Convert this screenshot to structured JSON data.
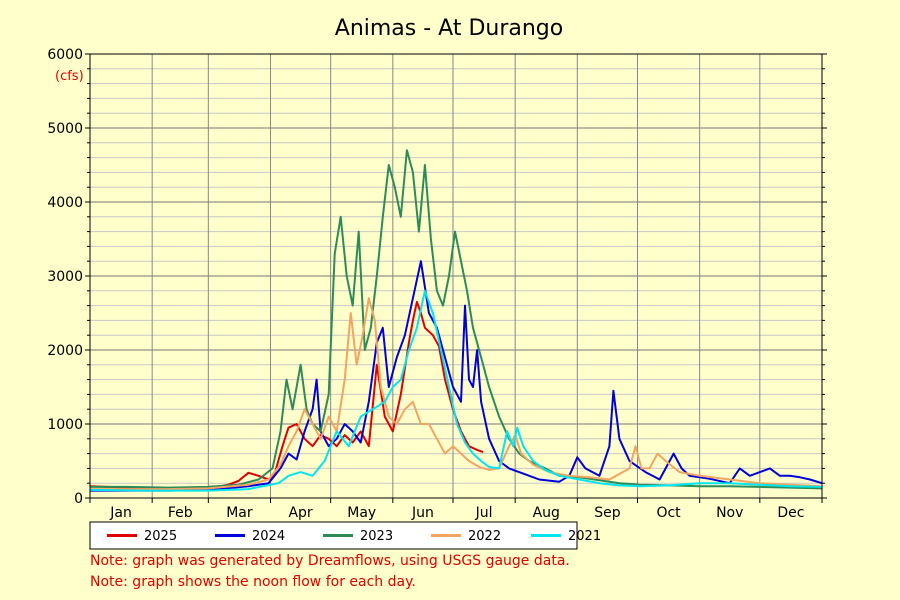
{
  "chart_data": {
    "type": "line",
    "title": "Animas - At Durango",
    "ylabel": "(cfs)",
    "xlabel": "",
    "ylim": [
      0,
      6000
    ],
    "y_ticks": [
      0,
      1000,
      2000,
      3000,
      4000,
      5000,
      6000
    ],
    "x_range_days": [
      1,
      366
    ],
    "x_labels": [
      "Jan",
      "Feb",
      "Mar",
      "Apr",
      "May",
      "Jun",
      "Jul",
      "Aug",
      "Sep",
      "Oct",
      "Nov",
      "Dec"
    ],
    "grid": true,
    "legend_placement": "bottom-left",
    "series": [
      {
        "name": "2025",
        "color": "#e00000",
        "points": [
          [
            1,
            160
          ],
          [
            10,
            150
          ],
          [
            20,
            140
          ],
          [
            31,
            140
          ],
          [
            45,
            130
          ],
          [
            55,
            130
          ],
          [
            60,
            150
          ],
          [
            66,
            160
          ],
          [
            70,
            180
          ],
          [
            75,
            230
          ],
          [
            80,
            340
          ],
          [
            85,
            300
          ],
          [
            90,
            250
          ],
          [
            93,
            320
          ],
          [
            97,
            700
          ],
          [
            100,
            950
          ],
          [
            104,
            1000
          ],
          [
            108,
            800
          ],
          [
            112,
            700
          ],
          [
            116,
            850
          ],
          [
            120,
            800
          ],
          [
            124,
            700
          ],
          [
            128,
            850
          ],
          [
            132,
            750
          ],
          [
            136,
            900
          ],
          [
            140,
            700
          ],
          [
            144,
            1800
          ],
          [
            148,
            1100
          ],
          [
            152,
            900
          ],
          [
            156,
            1400
          ],
          [
            160,
            2100
          ],
          [
            162,
            2400
          ],
          [
            164,
            2650
          ],
          [
            166,
            2500
          ],
          [
            168,
            2300
          ],
          [
            172,
            2200
          ],
          [
            175,
            2050
          ],
          [
            178,
            1600
          ],
          [
            182,
            1200
          ],
          [
            186,
            900
          ],
          [
            190,
            700
          ],
          [
            194,
            650
          ],
          [
            197,
            620
          ]
        ]
      },
      {
        "name": "2024",
        "color": "#0000dd",
        "points": [
          [
            1,
            100
          ],
          [
            20,
            100
          ],
          [
            40,
            100
          ],
          [
            60,
            110
          ],
          [
            80,
            160
          ],
          [
            90,
            200
          ],
          [
            96,
            400
          ],
          [
            100,
            600
          ],
          [
            104,
            520
          ],
          [
            108,
            900
          ],
          [
            112,
            1200
          ],
          [
            114,
            1600
          ],
          [
            116,
            900
          ],
          [
            120,
            700
          ],
          [
            124,
            800
          ],
          [
            128,
            1000
          ],
          [
            132,
            900
          ],
          [
            136,
            750
          ],
          [
            140,
            1300
          ],
          [
            144,
            2100
          ],
          [
            147,
            2300
          ],
          [
            150,
            1500
          ],
          [
            154,
            1900
          ],
          [
            158,
            2200
          ],
          [
            162,
            2700
          ],
          [
            166,
            3200
          ],
          [
            170,
            2500
          ],
          [
            174,
            2300
          ],
          [
            178,
            1900
          ],
          [
            182,
            1500
          ],
          [
            186,
            1300
          ],
          [
            188,
            2600
          ],
          [
            190,
            1600
          ],
          [
            192,
            1500
          ],
          [
            194,
            2000
          ],
          [
            196,
            1300
          ],
          [
            200,
            800
          ],
          [
            205,
            500
          ],
          [
            210,
            400
          ],
          [
            218,
            320
          ],
          [
            225,
            250
          ],
          [
            235,
            220
          ],
          [
            240,
            300
          ],
          [
            244,
            550
          ],
          [
            248,
            400
          ],
          [
            255,
            300
          ],
          [
            260,
            700
          ],
          [
            262,
            1450
          ],
          [
            265,
            800
          ],
          [
            270,
            500
          ],
          [
            278,
            350
          ],
          [
            285,
            250
          ],
          [
            292,
            600
          ],
          [
            296,
            400
          ],
          [
            300,
            300
          ],
          [
            310,
            260
          ],
          [
            320,
            200
          ],
          [
            325,
            400
          ],
          [
            330,
            300
          ],
          [
            340,
            400
          ],
          [
            345,
            300
          ],
          [
            350,
            300
          ],
          [
            355,
            280
          ],
          [
            360,
            250
          ],
          [
            366,
            200
          ]
        ]
      },
      {
        "name": "2023",
        "color": "#2e8b57",
        "points": [
          [
            1,
            150
          ],
          [
            20,
            150
          ],
          [
            40,
            140
          ],
          [
            60,
            150
          ],
          [
            75,
            180
          ],
          [
            85,
            250
          ],
          [
            92,
            400
          ],
          [
            96,
            900
          ],
          [
            99,
            1600
          ],
          [
            102,
            1200
          ],
          [
            106,
            1800
          ],
          [
            109,
            1200
          ],
          [
            112,
            1000
          ],
          [
            116,
            900
          ],
          [
            120,
            1400
          ],
          [
            123,
            3300
          ],
          [
            126,
            3800
          ],
          [
            129,
            3000
          ],
          [
            132,
            2600
          ],
          [
            135,
            3600
          ],
          [
            138,
            2000
          ],
          [
            141,
            2300
          ],
          [
            144,
            3000
          ],
          [
            147,
            3800
          ],
          [
            150,
            4500
          ],
          [
            153,
            4200
          ],
          [
            156,
            3800
          ],
          [
            159,
            4700
          ],
          [
            162,
            4400
          ],
          [
            165,
            3600
          ],
          [
            168,
            4500
          ],
          [
            171,
            3500
          ],
          [
            174,
            2800
          ],
          [
            177,
            2600
          ],
          [
            180,
            3000
          ],
          [
            183,
            3600
          ],
          [
            186,
            3200
          ],
          [
            189,
            2800
          ],
          [
            192,
            2300
          ],
          [
            196,
            1900
          ],
          [
            200,
            1500
          ],
          [
            205,
            1100
          ],
          [
            210,
            800
          ],
          [
            215,
            600
          ],
          [
            220,
            500
          ],
          [
            228,
            400
          ],
          [
            235,
            300
          ],
          [
            245,
            280
          ],
          [
            255,
            240
          ],
          [
            265,
            200
          ],
          [
            275,
            180
          ],
          [
            290,
            170
          ],
          [
            305,
            160
          ],
          [
            320,
            160
          ],
          [
            335,
            150
          ],
          [
            350,
            140
          ],
          [
            366,
            130
          ]
        ]
      },
      {
        "name": "2022",
        "color": "#f4a460",
        "points": [
          [
            1,
            120
          ],
          [
            20,
            120
          ],
          [
            40,
            120
          ],
          [
            60,
            130
          ],
          [
            80,
            180
          ],
          [
            90,
            250
          ],
          [
            96,
            450
          ],
          [
            100,
            700
          ],
          [
            104,
            900
          ],
          [
            108,
            1200
          ],
          [
            112,
            1000
          ],
          [
            116,
            800
          ],
          [
            120,
            1100
          ],
          [
            124,
            900
          ],
          [
            128,
            1600
          ],
          [
            131,
            2500
          ],
          [
            134,
            1800
          ],
          [
            137,
            2200
          ],
          [
            140,
            2700
          ],
          [
            143,
            2400
          ],
          [
            146,
            1500
          ],
          [
            150,
            1100
          ],
          [
            154,
            1000
          ],
          [
            158,
            1200
          ],
          [
            162,
            1300
          ],
          [
            166,
            1000
          ],
          [
            170,
            1000
          ],
          [
            174,
            800
          ],
          [
            178,
            600
          ],
          [
            182,
            700
          ],
          [
            186,
            600
          ],
          [
            190,
            500
          ],
          [
            195,
            420
          ],
          [
            200,
            380
          ],
          [
            205,
            400
          ],
          [
            210,
            700
          ],
          [
            213,
            850
          ],
          [
            216,
            600
          ],
          [
            222,
            450
          ],
          [
            230,
            350
          ],
          [
            240,
            300
          ],
          [
            250,
            280
          ],
          [
            260,
            250
          ],
          [
            270,
            400
          ],
          [
            273,
            700
          ],
          [
            276,
            400
          ],
          [
            280,
            400
          ],
          [
            284,
            600
          ],
          [
            288,
            500
          ],
          [
            295,
            350
          ],
          [
            305,
            300
          ],
          [
            320,
            250
          ],
          [
            335,
            200
          ],
          [
            350,
            180
          ],
          [
            366,
            160
          ]
        ]
      },
      {
        "name": "2021",
        "color": "#00e5ee",
        "points": [
          [
            1,
            110
          ],
          [
            30,
            100
          ],
          [
            60,
            100
          ],
          [
            80,
            120
          ],
          [
            95,
            200
          ],
          [
            100,
            300
          ],
          [
            106,
            350
          ],
          [
            112,
            300
          ],
          [
            118,
            500
          ],
          [
            124,
            900
          ],
          [
            130,
            700
          ],
          [
            136,
            1100
          ],
          [
            142,
            1200
          ],
          [
            148,
            1300
          ],
          [
            152,
            1500
          ],
          [
            156,
            1600
          ],
          [
            160,
            2000
          ],
          [
            164,
            2300
          ],
          [
            168,
            2800
          ],
          [
            172,
            2500
          ],
          [
            176,
            2000
          ],
          [
            180,
            1500
          ],
          [
            184,
            1000
          ],
          [
            188,
            750
          ],
          [
            192,
            600
          ],
          [
            196,
            500
          ],
          [
            200,
            420
          ],
          [
            205,
            400
          ],
          [
            209,
            900
          ],
          [
            212,
            700
          ],
          [
            214,
            950
          ],
          [
            217,
            700
          ],
          [
            222,
            500
          ],
          [
            228,
            380
          ],
          [
            235,
            300
          ],
          [
            245,
            250
          ],
          [
            255,
            200
          ],
          [
            265,
            170
          ],
          [
            275,
            160
          ],
          [
            290,
            170
          ],
          [
            305,
            200
          ],
          [
            320,
            200
          ],
          [
            335,
            180
          ],
          [
            350,
            160
          ],
          [
            366,
            150
          ]
        ]
      }
    ]
  },
  "notes": [
    "Note: graph was generated by Dreamflows, using USGS gauge data.",
    "Note: graph shows the noon flow for each day."
  ]
}
